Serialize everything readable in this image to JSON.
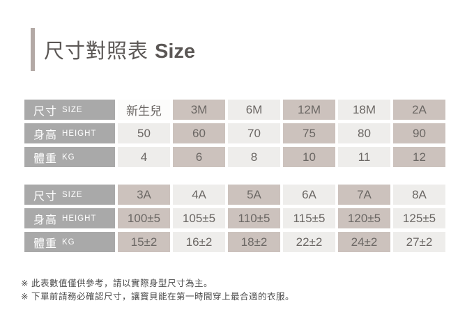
{
  "title": {
    "zh": "尺寸對照表",
    "en": "Size"
  },
  "colors": {
    "header_gray": "#a9a9a9",
    "taupe_accent": "#ccc2bd",
    "light_cell": "#eeedeb",
    "title_bar": "#b3a9a5",
    "title_text": "#5b5755"
  },
  "tables": [
    {
      "name": "infant-sizes",
      "rows": [
        {
          "label_zh": "尺寸",
          "label_en": "SIZE",
          "values": [
            "新生兒",
            "3M",
            "6M",
            "12M",
            "18M",
            "2A"
          ]
        },
        {
          "label_zh": "身高",
          "label_en": "HEIGHT",
          "values": [
            "50",
            "60",
            "70",
            "75",
            "80",
            "90"
          ]
        },
        {
          "label_zh": "體重",
          "label_en": "KG",
          "values": [
            "4",
            "6",
            "8",
            "10",
            "11",
            "12"
          ]
        }
      ],
      "accent_columns": [
        1,
        3,
        5
      ],
      "white_cells": [
        [
          0,
          0
        ]
      ]
    },
    {
      "name": "toddler-sizes",
      "rows": [
        {
          "label_zh": "尺寸",
          "label_en": "SIZE",
          "values": [
            "3A",
            "4A",
            "5A",
            "6A",
            "7A",
            "8A"
          ]
        },
        {
          "label_zh": "身高",
          "label_en": "HEIGHT",
          "values": [
            "100±5",
            "105±5",
            "110±5",
            "115±5",
            "120±5",
            "125±5"
          ]
        },
        {
          "label_zh": "體重",
          "label_en": "KG",
          "values": [
            "15±2",
            "16±2",
            "18±2",
            "22±2",
            "24±2",
            "27±2"
          ]
        }
      ],
      "accent_columns": [
        0,
        2,
        4
      ],
      "white_cells": []
    }
  ],
  "footnotes": [
    "※ 此表數值僅供參考，請以實際身型尺寸為主。",
    "※ 下單前請務必確認尺寸，讓寶貝能在第一時間穿上最合適的衣服。"
  ]
}
